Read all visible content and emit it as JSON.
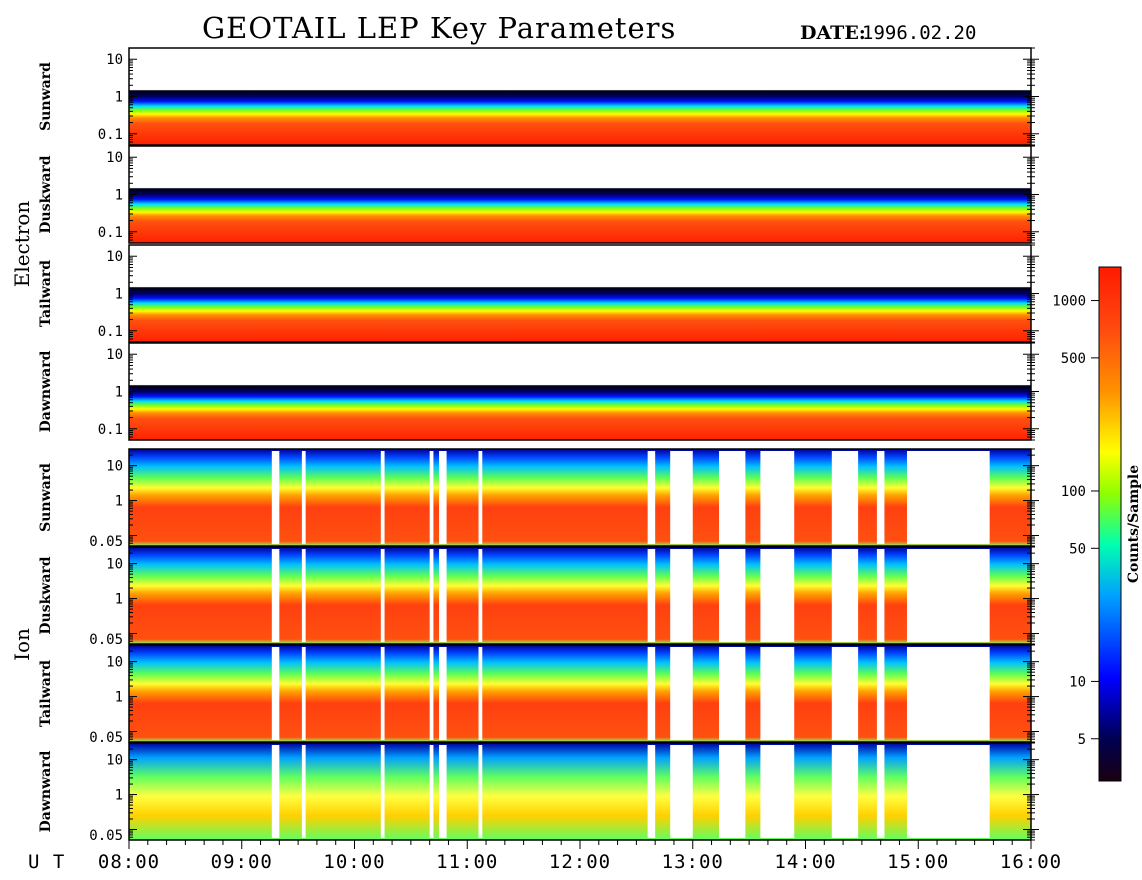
{
  "chart_data": {
    "type": "heatmap",
    "title": "GEOTAIL LEP Key Parameters",
    "date_label": "DATE:",
    "date_value": "1996.02.20",
    "x_axis_label": "U T",
    "x_ticks": [
      "08:00",
      "09:00",
      "10:00",
      "11:00",
      "12:00",
      "13:00",
      "14:00",
      "15:00",
      "16:00"
    ],
    "xlim": [
      "08:00",
      "16:00"
    ],
    "groups": [
      {
        "species": "Electron",
        "y_scale": "log",
        "ylim": [
          0.05,
          20
        ],
        "y_ticks": [
          "10",
          "1",
          "0.1"
        ],
        "panels": [
          {
            "direction": "Sunward"
          },
          {
            "direction": "Duskward"
          },
          {
            "direction": "Tailward"
          },
          {
            "direction": "Dawnward"
          }
        ]
      },
      {
        "species": "Ion",
        "y_scale": "log",
        "ylim": [
          0.05,
          30
        ],
        "y_ticks": [
          "10",
          "1",
          "0.05"
        ],
        "panels": [
          {
            "direction": "Sunward"
          },
          {
            "direction": "Duskward"
          },
          {
            "direction": "Tailward"
          },
          {
            "direction": "Dawnward"
          }
        ]
      }
    ],
    "colorbar": {
      "label": "Counts/Sample",
      "scale": "log",
      "range": [
        3,
        1500
      ],
      "ticks": [
        "1000",
        "500",
        "100",
        "50",
        "10",
        "5"
      ],
      "tick_values": [
        1000,
        500,
        100,
        50,
        10,
        5
      ],
      "colors": [
        "#1a0010",
        "#000050",
        "#0000ff",
        "#00a0ff",
        "#00ffb0",
        "#90ff00",
        "#ffff00",
        "#ff9000",
        "#ff4a10",
        "#ff1a00"
      ]
    },
    "ion_data_gaps_ut": [
      [
        "09:16",
        "09:20"
      ],
      [
        "09:32",
        "09:34"
      ],
      [
        "10:14",
        "10:16"
      ],
      [
        "10:40",
        "10:42"
      ],
      [
        "10:45",
        "10:49"
      ],
      [
        "11:06",
        "11:08"
      ],
      [
        "12:36",
        "12:40"
      ],
      [
        "12:48",
        "13:00"
      ],
      [
        "13:14",
        "13:28"
      ],
      [
        "13:36",
        "13:54"
      ],
      [
        "14:14",
        "14:28"
      ],
      [
        "14:38",
        "14:42"
      ],
      [
        "14:54",
        "15:38"
      ]
    ]
  }
}
